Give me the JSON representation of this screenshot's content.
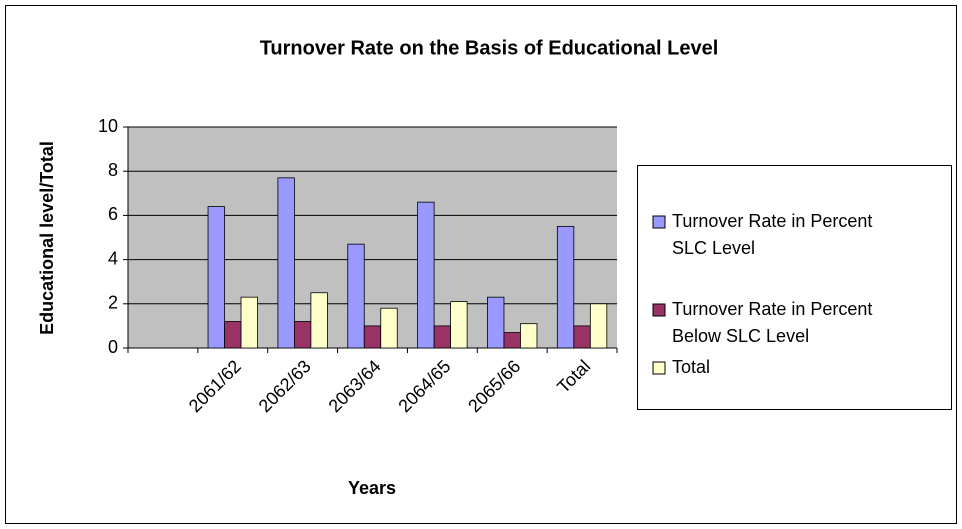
{
  "chart_data": {
    "type": "bar",
    "title": "Turnover Rate on the Basis of Educational Level",
    "x_label": "Years",
    "y_label": "Educational level/Total",
    "categories": [
      null,
      "2061/62",
      "2062/63",
      "2063/64",
      "2064/65",
      "2065/66",
      "Total"
    ],
    "series": [
      {
        "name": "Turnover Rate in Percent SLC Level",
        "color": "#9999ff",
        "values": [
          null,
          6.4,
          7.7,
          4.7,
          6.6,
          2.3,
          5.5
        ]
      },
      {
        "name": "Turnover Rate in Percent Below SLC Level",
        "color": "#993366",
        "values": [
          null,
          1.2,
          1.2,
          1.0,
          1.0,
          0.7,
          1.0
        ]
      },
      {
        "name": "Total",
        "color": "#ffffcc",
        "values": [
          null,
          2.3,
          2.5,
          1.8,
          2.1,
          1.1,
          2.0
        ]
      }
    ],
    "ylim": [
      0,
      10
    ],
    "yticks": [
      0,
      2,
      4,
      6,
      8,
      10
    ],
    "grid": true,
    "legend": "right"
  }
}
